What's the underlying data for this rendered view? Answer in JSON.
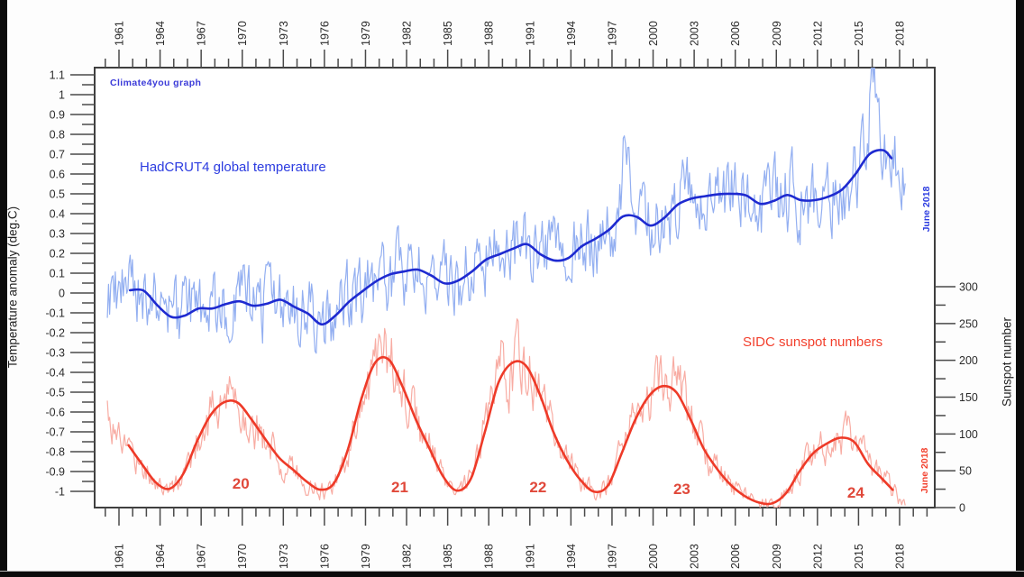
{
  "frame": {
    "background_color": "#fdfdfd",
    "edge_bar_color": "#0b0b0b"
  },
  "chart_data": {
    "type": "line",
    "annotations": {
      "watermark": "Climate4you graph",
      "temp_series_label": "HadCRUT4 global temperature",
      "sunspot_series_label": "SIDC sunspot numbers",
      "temp_last_point": "June 2018",
      "sunspot_last_point": "June 2018"
    },
    "x_axis": {
      "labels": [
        "1961",
        "1964",
        "1967",
        "1970",
        "1973",
        "1976",
        "1979",
        "1982",
        "1985",
        "1988",
        "1991",
        "1994",
        "1997",
        "2000",
        "2003",
        "2006",
        "2009",
        "2012",
        "2015",
        "2018"
      ],
      "first_label_year": 1961,
      "last_label_year": 2018,
      "major_step_years": 3,
      "minor_step_years": 1,
      "minor_from": 1960,
      "minor_to": 2020,
      "shown_on": [
        "top",
        "bottom"
      ]
    },
    "left_axis": {
      "title": "Temperature anomaly (deg.C)",
      "labels": [
        "1.1",
        "1",
        "0.9",
        "0.8",
        "0.7",
        "0.6",
        "0.5",
        "0.4",
        "0.3",
        "0.2",
        "0.1",
        "0",
        "-0.1",
        "-0.2",
        "-0.3",
        "-0.4",
        "-0.5",
        "-0.6",
        "-0.7",
        "-0.8",
        "-0.9",
        "-1"
      ],
      "min": -1.0,
      "max": 1.1,
      "major_step": 0.1,
      "minor_step": 0.05
    },
    "right_axis": {
      "title": "Sunspot number",
      "labels": [
        "0",
        "50",
        "100",
        "150",
        "200",
        "250",
        "300"
      ],
      "min": 0,
      "max": 300,
      "major_step": 50,
      "minor_step": 25
    },
    "grid": "off",
    "series": [
      {
        "name": "HadCRUT4 global temperature",
        "axis": "left",
        "unit": "deg.C",
        "color_monthly": "#93aff1",
        "color_smoothed": "#1e2ad0",
        "smoothed_start_year": 1960,
        "smoothed_annual": [
          -0.03,
          -0.01,
          0.02,
          0.01,
          -0.08,
          -0.13,
          -0.11,
          -0.07,
          -0.08,
          -0.05,
          -0.04,
          -0.07,
          -0.05,
          -0.03,
          -0.08,
          -0.11,
          -0.17,
          -0.1,
          -0.03,
          0.02,
          0.07,
          0.1,
          0.11,
          0.12,
          0.08,
          0.04,
          0.07,
          0.12,
          0.18,
          0.2,
          0.23,
          0.25,
          0.18,
          0.16,
          0.18,
          0.25,
          0.28,
          0.33,
          0.4,
          0.38,
          0.33,
          0.39,
          0.46,
          0.48,
          0.49,
          0.5,
          0.5,
          0.49,
          0.44,
          0.47,
          0.5,
          0.46,
          0.47,
          0.49,
          0.53,
          0.62,
          0.72,
          0.72,
          0.62
        ],
        "smoothed_draw_range": [
          1961.8,
          2017.4
        ],
        "monthly_range": [
          1960.15,
          2018.45
        ],
        "monthly_noise": 0.16,
        "monthly_spikes": [
          {
            "year": 1998.0,
            "amp": 0.3,
            "width": 0.35
          },
          {
            "year": 2016.12,
            "amp": 0.36,
            "width": 0.4
          }
        ]
      },
      {
        "name": "SIDC sunspot numbers",
        "axis": "right",
        "unit": "sunspots",
        "color_monthly": "#f8aca3",
        "color_smoothed": "#ee3a28",
        "smoothed_start_year": 1960,
        "smoothed_annual": [
          140,
          100,
          78,
          50,
          27,
          25,
          55,
          105,
          135,
          147,
          140,
          110,
          85,
          60,
          48,
          30,
          22,
          38,
          95,
          170,
          208,
          198,
          150,
          105,
          68,
          30,
          20,
          48,
          125,
          188,
          200,
          190,
          140,
          88,
          55,
          30,
          18,
          35,
          90,
          132,
          160,
          167,
          152,
          108,
          68,
          45,
          24,
          12,
          5,
          6,
          25,
          60,
          80,
          90,
          97,
          85,
          48,
          36,
          12
        ],
        "smoothed_draw_range": [
          1961.7,
          2017.5
        ],
        "monthly_range": [
          1960.15,
          2018.45
        ],
        "noise_base": 7,
        "noise_scale": 0.17
      }
    ],
    "solar_cycle_labels": [
      {
        "label": "20",
        "year": 1969.9,
        "level": 32
      },
      {
        "label": "21",
        "year": 1981.5,
        "level": 27
      },
      {
        "label": "22",
        "year": 1991.6,
        "level": 27
      },
      {
        "label": "23",
        "year": 2002.1,
        "level": 24
      },
      {
        "label": "24",
        "year": 2014.8,
        "level": 20
      }
    ],
    "axis_colors": {
      "border": "#3f3f3f",
      "ticks": "#4a4a4a",
      "tick_labels": "#2b2b2b"
    }
  }
}
